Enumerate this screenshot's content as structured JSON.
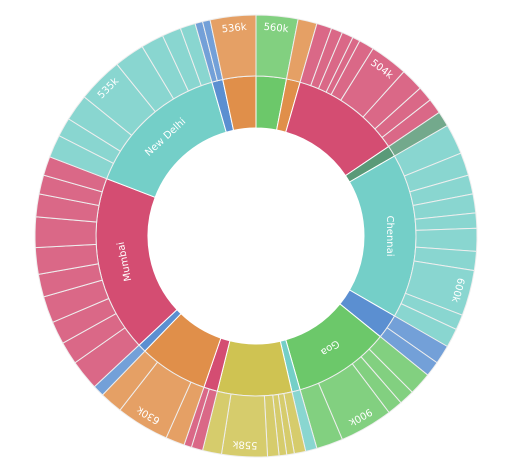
{
  "chart_data": {
    "type": "sunburst",
    "nodes": [
      {
        "color": "#6cc86a",
        "value": 11,
        "children": [
          {
            "name": "560k",
            "value": 11
          }
        ]
      },
      {
        "color": "#e08f4a",
        "value": 5,
        "children": [
          {
            "value": 5
          }
        ]
      },
      {
        "color": "#d44d72",
        "value": 40,
        "children": [
          {
            "value": 4
          },
          {
            "value": 3
          },
          {
            "value": 3
          },
          {
            "value": 2
          },
          {
            "value": 4
          },
          {
            "name": "504k",
            "value": 10
          },
          {
            "value": 6
          },
          {
            "value": 4
          },
          {
            "value": 4
          }
        ]
      },
      {
        "color": "#5a9a78",
        "value": 4,
        "children": [
          {
            "value": 4
          }
        ]
      },
      {
        "name": "Chennai",
        "color": "#74cfc8",
        "value": 60,
        "children": [
          {
            "value": 8
          },
          {
            "value": 6
          },
          {
            "value": 5
          },
          {
            "value": 5
          },
          {
            "value": 4
          },
          {
            "value": 6
          },
          {
            "value": 5
          },
          {
            "name": "600k",
            "value": 12
          },
          {
            "value": 4
          },
          {
            "value": 5
          }
        ]
      },
      {
        "color": "#5b8fd1",
        "value": 9,
        "children": [
          {
            "value": 5
          },
          {
            "value": 4
          }
        ]
      },
      {
        "name": "Goa",
        "color": "#6cc86a",
        "value": 35,
        "children": [
          {
            "value": 6
          },
          {
            "value": 4
          },
          {
            "value": 4
          },
          {
            "name": "900k",
            "value": 14
          },
          {
            "value": 7
          }
        ]
      },
      {
        "color": "#74cfc8",
        "value": 3,
        "children": [
          {
            "value": 3
          }
        ]
      },
      {
        "color": "#cfc352",
        "value": 27,
        "children": [
          {
            "value": 3
          },
          {
            "value": 2
          },
          {
            "value": 2
          },
          {
            "value": 3
          },
          {
            "name": "558k",
            "value": 12
          },
          {
            "value": 5
          }
        ]
      },
      {
        "color": "#d44d72",
        "value": 5,
        "children": [
          {
            "value": 3
          },
          {
            "value": 2
          }
        ]
      },
      {
        "color": "#e08f4a",
        "value": 25,
        "children": [
          {
            "value": 5
          },
          {
            "name": "630k",
            "value": 14
          },
          {
            "value": 6
          }
        ]
      },
      {
        "color": "#5b8fd1",
        "value": 3,
        "children": [
          {
            "value": 3
          }
        ]
      },
      {
        "name": "Mumbai",
        "color": "#d44d72",
        "value": 64,
        "children": [
          {
            "value": 8
          },
          {
            "value": 6
          },
          {
            "value": 6
          },
          {
            "value": 7
          },
          {
            "value": 6
          },
          {
            "value": 7
          },
          {
            "value": 8
          },
          {
            "value": 6
          },
          {
            "value": 5
          },
          {
            "value": 5
          }
        ]
      },
      {
        "name": "New Delhi",
        "color": "#74cfc8",
        "value": 53,
        "children": [
          {
            "value": 6
          },
          {
            "value": 5
          },
          {
            "value": 7
          },
          {
            "name": "535k",
            "value": 12
          },
          {
            "value": 8
          },
          {
            "value": 6
          },
          {
            "value": 5
          },
          {
            "value": 4
          }
        ]
      },
      {
        "color": "#5b8fd1",
        "value": 4,
        "children": [
          {
            "value": 2
          },
          {
            "value": 2
          }
        ]
      },
      {
        "color": "#e08f4a",
        "value": 12,
        "children": [
          {
            "name": "536k",
            "value": 12
          }
        ]
      }
    ]
  }
}
